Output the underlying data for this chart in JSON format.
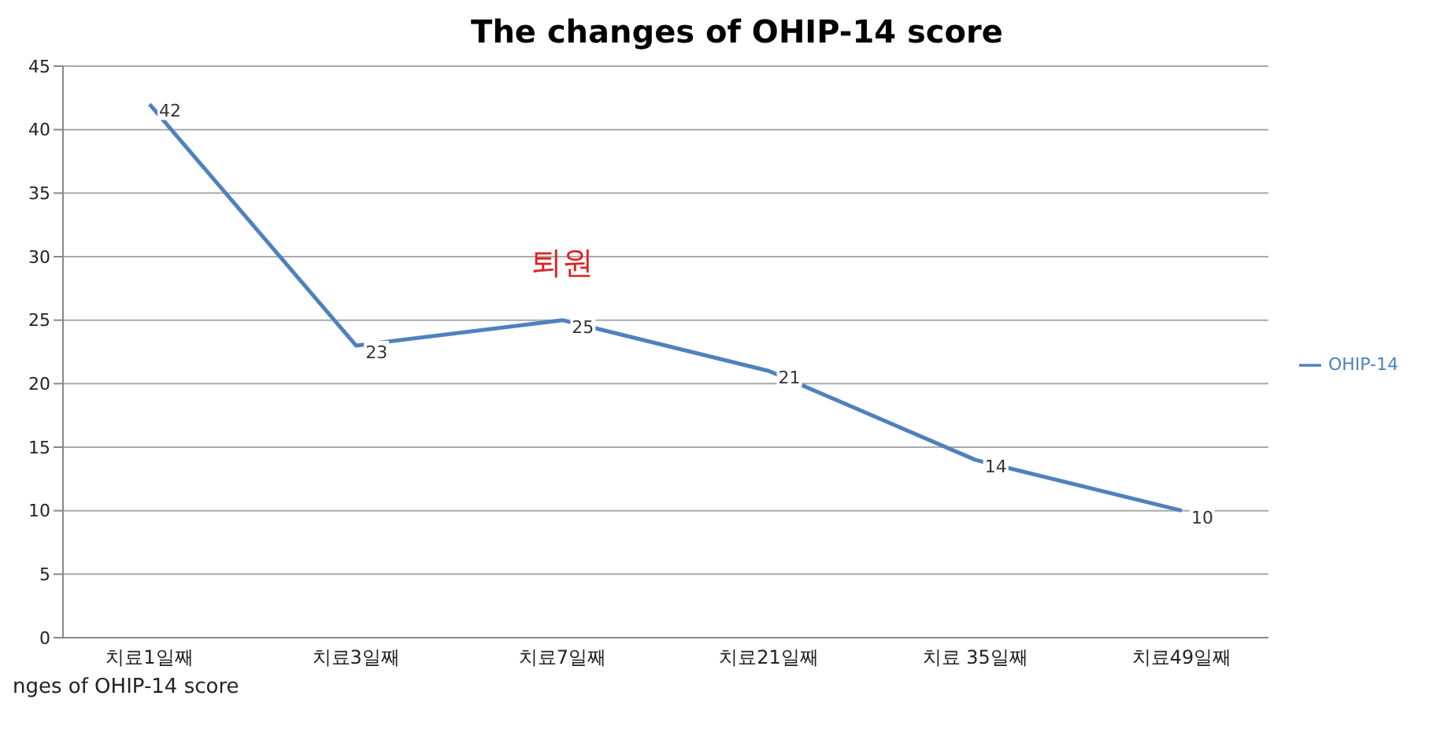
{
  "chart_data": {
    "type": "line",
    "title": "The changes of OHIP-14 score",
    "categories": [
      "치료1일째",
      "치료3일째",
      "치료7일째",
      "치료21일째",
      "치료 35일째",
      "치료49일째"
    ],
    "series": [
      {
        "name": "OHIP-14",
        "color": "#4f81bd",
        "values": [
          42,
          23,
          25,
          21,
          14,
          10
        ]
      }
    ],
    "ylim": [
      0,
      45
    ],
    "yticks": [
      0,
      5,
      10,
      15,
      20,
      25,
      30,
      35,
      40,
      45
    ],
    "grid": "y",
    "legend": "right",
    "marker": "none",
    "line_style": "solid",
    "data_labels": true,
    "annotations": [
      {
        "text": "퇴원",
        "x": "치료7일째",
        "y": 25
      },
      "nges of OHIP-14 score"
    ]
  }
}
